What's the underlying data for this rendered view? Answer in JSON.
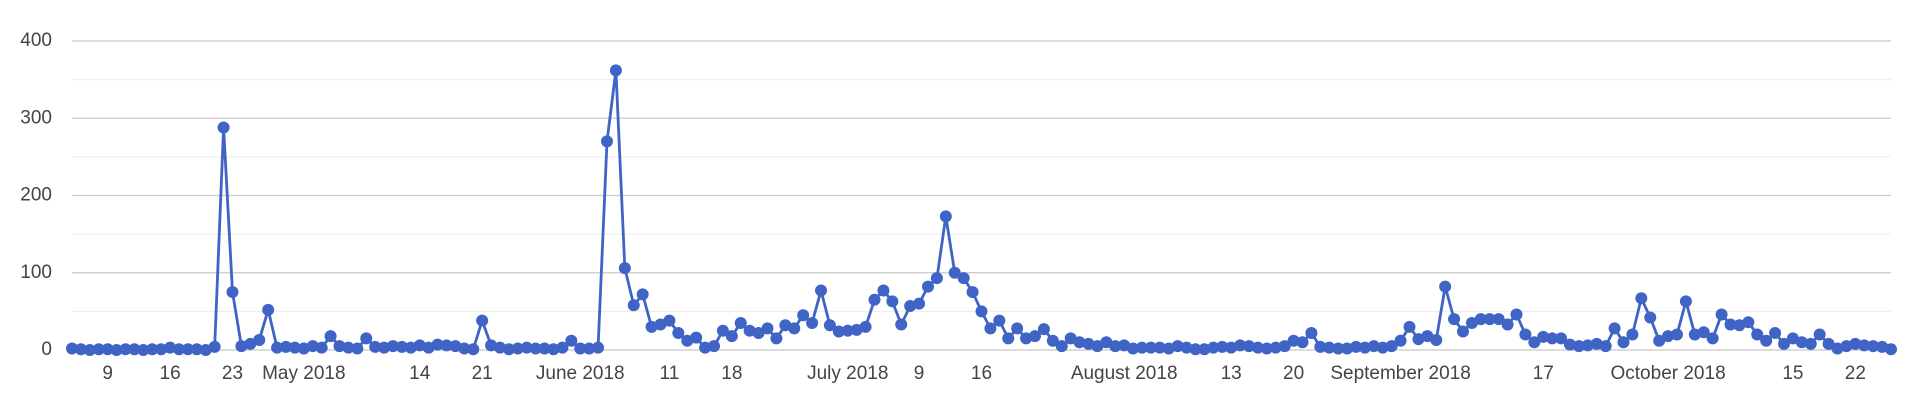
{
  "chart_data": {
    "type": "line",
    "x": [
      "2018-04-05",
      "2018-04-06",
      "2018-04-07",
      "2018-04-08",
      "2018-04-09",
      "2018-04-10",
      "2018-04-11",
      "2018-04-12",
      "2018-04-13",
      "2018-04-14",
      "2018-04-15",
      "2018-04-16",
      "2018-04-17",
      "2018-04-18",
      "2018-04-19",
      "2018-04-20",
      "2018-04-21",
      "2018-04-22",
      "2018-04-23",
      "2018-04-24",
      "2018-04-25",
      "2018-04-26",
      "2018-04-27",
      "2018-04-28",
      "2018-04-29",
      "2018-04-30",
      "2018-05-01",
      "2018-05-02",
      "2018-05-03",
      "2018-05-04",
      "2018-05-05",
      "2018-05-06",
      "2018-05-07",
      "2018-05-08",
      "2018-05-09",
      "2018-05-10",
      "2018-05-11",
      "2018-05-12",
      "2018-05-13",
      "2018-05-14",
      "2018-05-15",
      "2018-05-16",
      "2018-05-17",
      "2018-05-18",
      "2018-05-19",
      "2018-05-20",
      "2018-05-21",
      "2018-05-22",
      "2018-05-23",
      "2018-05-24",
      "2018-05-25",
      "2018-05-26",
      "2018-05-27",
      "2018-05-28",
      "2018-05-29",
      "2018-05-30",
      "2018-05-31",
      "2018-06-01",
      "2018-06-02",
      "2018-06-03",
      "2018-06-04",
      "2018-06-05",
      "2018-06-06",
      "2018-06-07",
      "2018-06-08",
      "2018-06-09",
      "2018-06-10",
      "2018-06-11",
      "2018-06-12",
      "2018-06-13",
      "2018-06-14",
      "2018-06-15",
      "2018-06-16",
      "2018-06-17",
      "2018-06-18",
      "2018-06-19",
      "2018-06-20",
      "2018-06-21",
      "2018-06-22",
      "2018-06-23",
      "2018-06-24",
      "2018-06-25",
      "2018-06-26",
      "2018-06-27",
      "2018-06-28",
      "2018-06-29",
      "2018-06-30",
      "2018-07-01",
      "2018-07-02",
      "2018-07-03",
      "2018-07-04",
      "2018-07-05",
      "2018-07-06",
      "2018-07-07",
      "2018-07-08",
      "2018-07-09",
      "2018-07-10",
      "2018-07-11",
      "2018-07-12",
      "2018-07-13",
      "2018-07-14",
      "2018-07-15",
      "2018-07-16",
      "2018-07-17",
      "2018-07-18",
      "2018-07-19",
      "2018-07-20",
      "2018-07-21",
      "2018-07-22",
      "2018-07-23",
      "2018-07-24",
      "2018-07-25",
      "2018-07-26",
      "2018-07-27",
      "2018-07-28",
      "2018-07-29",
      "2018-07-30",
      "2018-07-31",
      "2018-08-01",
      "2018-08-02",
      "2018-08-03",
      "2018-08-04",
      "2018-08-05",
      "2018-08-06",
      "2018-08-07",
      "2018-08-08",
      "2018-08-09",
      "2018-08-10",
      "2018-08-11",
      "2018-08-12",
      "2018-08-13",
      "2018-08-14",
      "2018-08-15",
      "2018-08-16",
      "2018-08-17",
      "2018-08-18",
      "2018-08-19",
      "2018-08-20",
      "2018-08-21",
      "2018-08-22",
      "2018-08-23",
      "2018-08-24",
      "2018-08-25",
      "2018-08-26",
      "2018-08-27",
      "2018-08-28",
      "2018-08-29",
      "2018-08-30",
      "2018-08-31",
      "2018-09-01",
      "2018-09-02",
      "2018-09-03",
      "2018-09-04",
      "2018-09-05",
      "2018-09-06",
      "2018-09-07",
      "2018-09-08",
      "2018-09-09",
      "2018-09-10",
      "2018-09-11",
      "2018-09-12",
      "2018-09-13",
      "2018-09-14",
      "2018-09-15",
      "2018-09-16",
      "2018-09-17",
      "2018-09-18",
      "2018-09-19",
      "2018-09-20",
      "2018-09-21",
      "2018-09-22",
      "2018-09-23",
      "2018-09-24",
      "2018-09-25",
      "2018-09-26",
      "2018-09-27",
      "2018-09-28",
      "2018-09-29",
      "2018-09-30",
      "2018-10-01",
      "2018-10-02",
      "2018-10-03",
      "2018-10-04",
      "2018-10-05",
      "2018-10-06",
      "2018-10-07",
      "2018-10-08",
      "2018-10-09",
      "2018-10-10",
      "2018-10-11",
      "2018-10-12",
      "2018-10-13",
      "2018-10-14",
      "2018-10-15",
      "2018-10-16",
      "2018-10-17",
      "2018-10-18",
      "2018-10-19",
      "2018-10-20",
      "2018-10-21",
      "2018-10-22",
      "2018-10-23",
      "2018-10-24",
      "2018-10-25",
      "2018-10-26"
    ],
    "series": [
      {
        "color": "#3f64c6",
        "values": [
          2,
          1,
          0,
          1,
          1,
          0,
          1,
          1,
          0,
          1,
          1,
          3,
          1,
          1,
          1,
          0,
          4,
          288,
          75,
          5,
          8,
          13,
          52,
          3,
          4,
          3,
          2,
          5,
          3,
          18,
          5,
          3,
          2,
          15,
          4,
          3,
          5,
          4,
          3,
          6,
          3,
          7,
          6,
          5,
          2,
          1,
          38,
          6,
          3,
          1,
          2,
          3,
          2,
          2,
          1,
          3,
          12,
          2,
          2,
          3,
          270,
          362,
          106,
          58,
          72,
          30,
          33,
          38,
          22,
          12,
          16,
          3,
          5,
          25,
          18,
          35,
          25,
          22,
          28,
          15,
          32,
          28,
          45,
          35,
          77,
          32,
          24,
          25,
          26,
          30,
          65,
          77,
          63,
          33,
          57,
          60,
          82,
          93,
          173,
          100,
          93,
          75,
          50,
          28,
          38,
          15,
          28,
          15,
          18,
          27,
          12,
          5,
          15,
          10,
          8,
          5,
          10,
          5,
          6,
          2,
          3,
          3,
          3,
          2,
          5,
          3,
          1,
          1,
          3,
          4,
          3,
          6,
          5,
          3,
          2,
          3,
          5,
          12,
          10,
          22,
          4,
          3,
          2,
          2,
          4,
          3,
          5,
          3,
          5,
          12,
          30,
          14,
          18,
          13,
          82,
          40,
          24,
          35,
          40,
          40,
          40,
          33,
          46,
          20,
          10,
          17,
          15,
          15,
          7,
          5,
          6,
          8,
          5,
          28,
          10,
          20,
          67,
          42,
          12,
          18,
          20,
          63,
          20,
          23,
          15,
          46,
          33,
          32,
          36,
          20,
          12,
          22,
          8,
          15,
          10,
          8,
          20,
          8,
          2,
          5,
          8,
          6,
          5,
          4,
          1
        ]
      }
    ],
    "xlim": [
      "2018-04-05",
      "2018-10-26"
    ],
    "xticks": [
      {
        "value": "2018-04-09",
        "label": "9"
      },
      {
        "value": "2018-04-16",
        "label": "16"
      },
      {
        "value": "2018-04-23",
        "label": "23"
      },
      {
        "value": "2018-05-01",
        "label": "May 2018"
      },
      {
        "value": "2018-05-14",
        "label": "14"
      },
      {
        "value": "2018-05-21",
        "label": "21"
      },
      {
        "value": "2018-06-01",
        "label": "June 2018"
      },
      {
        "value": "2018-06-11",
        "label": "11"
      },
      {
        "value": "2018-06-18",
        "label": "18"
      },
      {
        "value": "2018-07-01",
        "label": "July 2018"
      },
      {
        "value": "2018-07-09",
        "label": "9"
      },
      {
        "value": "2018-07-16",
        "label": "16"
      },
      {
        "value": "2018-08-01",
        "label": "August 2018"
      },
      {
        "value": "2018-08-13",
        "label": "13"
      },
      {
        "value": "2018-08-20",
        "label": "20"
      },
      {
        "value": "2018-09-01",
        "label": "September 2018"
      },
      {
        "value": "2018-09-17",
        "label": "17"
      },
      {
        "value": "2018-10-01",
        "label": "October 2018"
      },
      {
        "value": "2018-10-15",
        "label": "15"
      },
      {
        "value": "2018-10-22",
        "label": "22"
      }
    ],
    "ylim": [
      0,
      400
    ],
    "yticks": [
      0,
      100,
      200,
      300,
      400
    ],
    "minor_yticks": [
      50,
      150,
      250,
      350
    ],
    "grid": true
  }
}
